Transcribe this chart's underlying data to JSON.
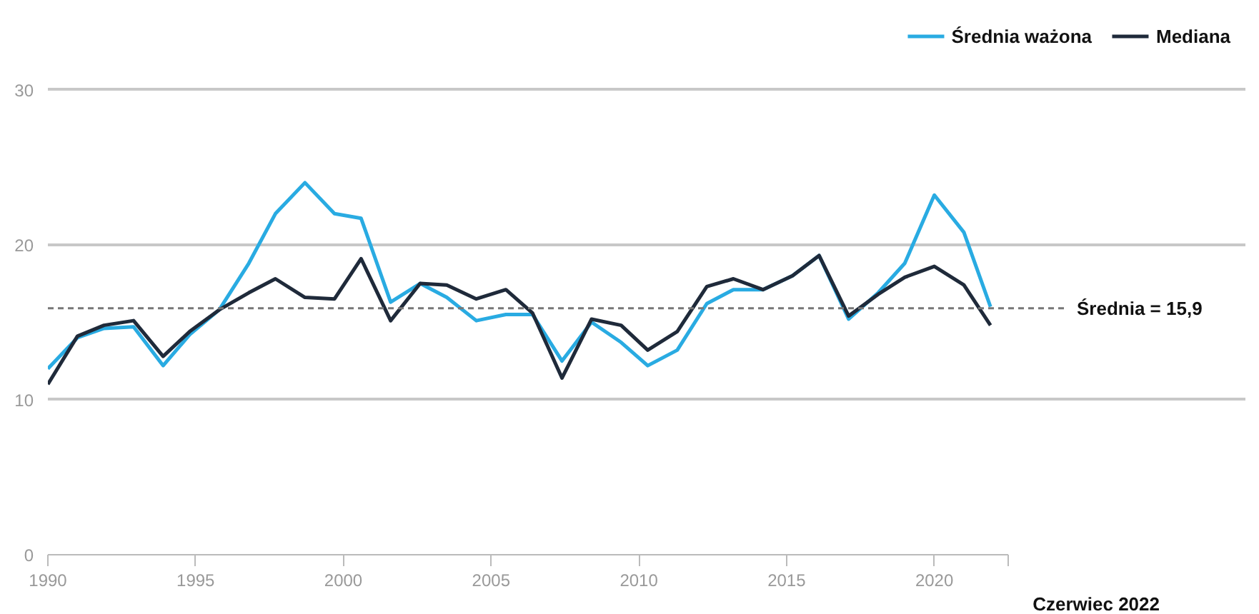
{
  "chart_data": {
    "type": "line",
    "x": [
      1990.0,
      1991.0,
      1991.9,
      1992.9,
      1993.9,
      1994.8,
      1995.8,
      1996.8,
      1997.7,
      1998.7,
      1999.7,
      2000.6,
      2001.6,
      2002.6,
      2003.5,
      2004.5,
      2005.5,
      2006.4,
      2007.4,
      2008.4,
      2009.4,
      2010.3,
      2011.3,
      2012.3,
      2013.2,
      2014.2,
      2015.2,
      2016.1,
      2017.1,
      2018.1,
      2019.0,
      2020.0,
      2021.0,
      2021.9
    ],
    "series": [
      {
        "name": "Średnia ważona",
        "color": "#29abe2",
        "values": [
          12.0,
          14.0,
          14.6,
          14.7,
          12.2,
          14.2,
          15.8,
          18.8,
          22.0,
          24.0,
          22.0,
          21.7,
          16.3,
          17.5,
          16.6,
          15.1,
          15.5,
          15.5,
          12.5,
          15.0,
          13.7,
          12.2,
          13.2,
          16.2,
          17.1,
          17.1,
          18.0,
          19.3,
          15.2,
          16.9,
          18.8,
          23.2,
          20.8,
          16.0
        ]
      },
      {
        "name": "Mediana",
        "color": "#1f2a3a",
        "values": [
          11.0,
          14.1,
          14.8,
          15.1,
          12.8,
          14.4,
          15.8,
          16.9,
          17.8,
          16.6,
          16.5,
          19.1,
          15.1,
          17.5,
          17.4,
          16.5,
          17.1,
          15.6,
          11.4,
          15.2,
          14.8,
          13.2,
          14.4,
          17.3,
          17.8,
          17.1,
          18.0,
          19.3,
          15.4,
          16.8,
          17.9,
          18.6,
          17.4,
          14.8
        ]
      }
    ],
    "xlim": [
      1990,
      2022.5
    ],
    "xticks": [
      1990,
      1995,
      2000,
      2005,
      2010,
      2015,
      2020,
      {
        "value": 2022.5,
        "label": null
      }
    ],
    "ylim": [
      0,
      30
    ],
    "yticks": [
      0,
      10,
      20,
      30
    ],
    "grid": "y",
    "legend": "top right",
    "ref_lines": [
      {
        "axis": "y",
        "value": 15.9,
        "label": "Średnia = 15,9",
        "color": "#777777",
        "line_style": "dashed"
      }
    ],
    "annotations": [
      "Czerwiec 2022"
    ]
  }
}
